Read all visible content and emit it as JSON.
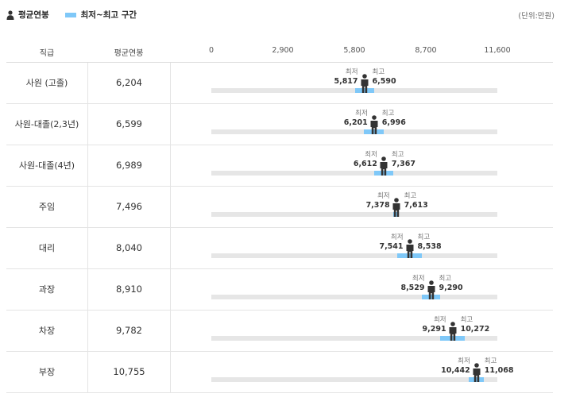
{
  "legend": {
    "avg_label": "평균연봉",
    "range_label": "최저~최고 구간"
  },
  "unit": "(단위:만원)",
  "columns": {
    "rank": "직급",
    "avg": "평균연봉"
  },
  "labels": {
    "min": "최저",
    "max": "최고"
  },
  "colors": {
    "range": "#7fc8f8",
    "track": "#e6e6e6",
    "marker": "#333333"
  },
  "chart_data": {
    "type": "table",
    "axis": {
      "ticks": [
        "0",
        "2,900",
        "5,800",
        "8,700",
        "11,600"
      ],
      "tick_values": [
        0,
        2900,
        5800,
        8700,
        11600
      ],
      "xlim": [
        0,
        11600
      ]
    },
    "rows": [
      {
        "rank": "사원 (고졸)",
        "avg": "6,204",
        "avg_value": 6204,
        "min": "5,817",
        "min_value": 5817,
        "max": "6,590",
        "max_value": 6590
      },
      {
        "rank": "사원-대졸(2,3년)",
        "avg": "6,599",
        "avg_value": 6599,
        "min": "6,201",
        "min_value": 6201,
        "max": "6,996",
        "max_value": 6996
      },
      {
        "rank": "사원-대졸(4년)",
        "avg": "6,989",
        "avg_value": 6989,
        "min": "6,612",
        "min_value": 6612,
        "max": "7,367",
        "max_value": 7367
      },
      {
        "rank": "주임",
        "avg": "7,496",
        "avg_value": 7496,
        "min": "7,378",
        "min_value": 7378,
        "max": "7,613",
        "max_value": 7613
      },
      {
        "rank": "대리",
        "avg": "8,040",
        "avg_value": 8040,
        "min": "7,541",
        "min_value": 7541,
        "max": "8,538",
        "max_value": 8538
      },
      {
        "rank": "과장",
        "avg": "8,910",
        "avg_value": 8910,
        "min": "8,529",
        "min_value": 8529,
        "max": "9,290",
        "max_value": 9290
      },
      {
        "rank": "차장",
        "avg": "9,782",
        "avg_value": 9782,
        "min": "9,291",
        "min_value": 9291,
        "max": "10,272",
        "max_value": 10272
      },
      {
        "rank": "부장",
        "avg": "10,755",
        "avg_value": 10755,
        "min": "10,442",
        "min_value": 10442,
        "max": "11,068",
        "max_value": 11068
      }
    ]
  }
}
